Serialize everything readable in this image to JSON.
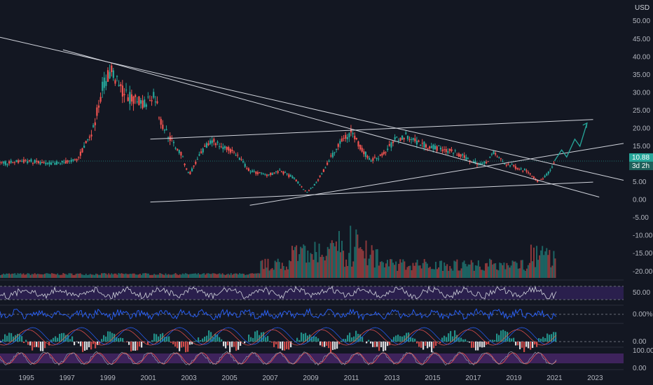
{
  "chart_data": [
    {
      "type": "candlestick",
      "currency": "USD",
      "y_ticks": [
        "50.00",
        "45.00",
        "40.00",
        "35.00",
        "30.00",
        "25.00",
        "20.00",
        "15.00",
        "10.00",
        "5.00",
        "0.00",
        "-5.00",
        "-10.00",
        "-15.00",
        "-20.00"
      ],
      "ylim": [
        -22,
        52
      ],
      "x_ticks": [
        "1995",
        "1997",
        "1999",
        "2001",
        "2003",
        "2005",
        "2007",
        "2009",
        "2011",
        "2013",
        "2015",
        "2017",
        "2019",
        "2021",
        "2023"
      ],
      "xlim": [
        1993.7,
        2024.4
      ],
      "last_price": "10.88",
      "countdown": "3d 2h",
      "price_path": [
        [
          1993.7,
          10
        ],
        [
          1995,
          11
        ],
        [
          1996,
          10
        ],
        [
          1997.5,
          11
        ],
        [
          1998.3,
          20
        ],
        [
          1998.8,
          33
        ],
        [
          1999.2,
          36
        ],
        [
          1999.6,
          31
        ],
        [
          2000.2,
          28
        ],
        [
          2000.8,
          27
        ],
        [
          2001.3,
          30
        ],
        [
          2001.6,
          22
        ],
        [
          2002.2,
          16
        ],
        [
          2002.6,
          13
        ],
        [
          2003.0,
          7
        ],
        [
          2003.5,
          12
        ],
        [
          2004.1,
          17
        ],
        [
          2004.6,
          15
        ],
        [
          2005.3,
          13
        ],
        [
          2006.0,
          8
        ],
        [
          2006.8,
          7
        ],
        [
          2007.5,
          8
        ],
        [
          2008.2,
          6
        ],
        [
          2008.8,
          2
        ],
        [
          2009.3,
          5
        ],
        [
          2010.0,
          12
        ],
        [
          2010.6,
          17
        ],
        [
          2011.0,
          19
        ],
        [
          2011.5,
          14
        ],
        [
          2012.0,
          11
        ],
        [
          2012.6,
          13
        ],
        [
          2013.2,
          17
        ],
        [
          2013.8,
          18
        ],
        [
          2014.3,
          16
        ],
        [
          2014.9,
          15
        ],
        [
          2015.6,
          14
        ],
        [
          2016.2,
          13
        ],
        [
          2016.8,
          11
        ],
        [
          2017.5,
          10
        ],
        [
          2018.0,
          13
        ],
        [
          2018.6,
          10
        ],
        [
          2019.2,
          9
        ],
        [
          2019.7,
          8
        ],
        [
          2020.2,
          5
        ],
        [
          2020.6,
          7
        ],
        [
          2020.9,
          9
        ],
        [
          2021.0,
          10.88
        ]
      ],
      "projection": [
        [
          2021.0,
          10.9
        ],
        [
          2021.35,
          14
        ],
        [
          2021.6,
          12
        ],
        [
          2022.0,
          17
        ],
        [
          2022.25,
          15
        ],
        [
          2022.6,
          21.5
        ]
      ]
    },
    {
      "type": "bar",
      "name": "volume",
      "y_ticks": [],
      "note_peak_years": [
        2008.5,
        2010,
        2020.5
      ]
    },
    {
      "type": "line",
      "name": "oscillator-1",
      "y_ticks": [
        "50.00"
      ]
    },
    {
      "type": "line",
      "name": "oscillator-2",
      "y_ticks": [
        "0.00%"
      ]
    },
    {
      "type": "bar",
      "name": "oscillator-3",
      "y_ticks": [
        "0.00"
      ]
    },
    {
      "type": "line",
      "name": "oscillator-4",
      "y_ticks": [
        "100.00",
        "0.00"
      ]
    }
  ],
  "colors": {
    "background": "#131722",
    "up": "#26a69a",
    "down": "#ef5350",
    "trendline": "#d1d4dc",
    "projection": "#26a69a",
    "rsi_line": "#d1d4dc",
    "band_fill": "#2a1f4d",
    "osc_blue": "#2962ff",
    "purple": "#5b2c83",
    "grid": "#2a2e39"
  }
}
